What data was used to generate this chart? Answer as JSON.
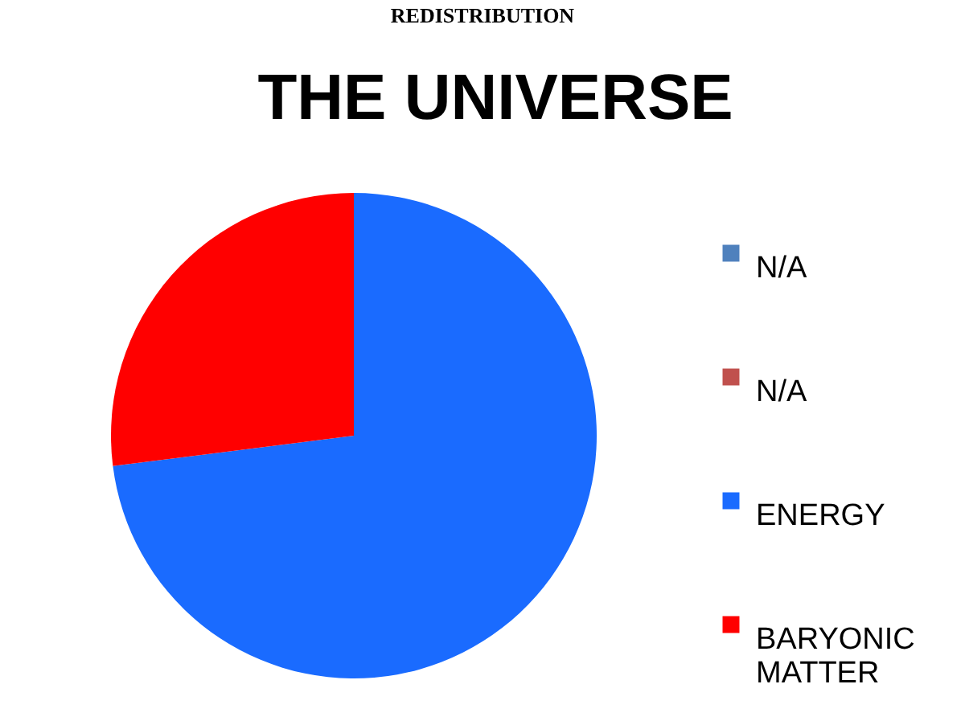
{
  "chart_data": {
    "type": "pie",
    "title": "THE UNIVERSE",
    "annotations": [
      "REDISTRIBUTION"
    ],
    "categories": [
      "N/A",
      "N/A",
      "ENERGY",
      "BARYONIC MATTER"
    ],
    "values": [
      0,
      0,
      73,
      27
    ],
    "colors": [
      "#4f81bd",
      "#c0504d",
      "#1a6bff",
      "#ff0000"
    ],
    "legend": "right"
  }
}
